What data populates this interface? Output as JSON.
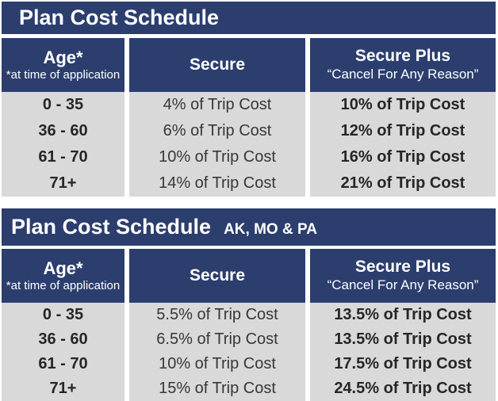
{
  "colors": {
    "navy": "#2b3e6e",
    "row_gray": "#d9d9d9",
    "text_dark": "#2f2f2f",
    "separator_white": "#ffffff"
  },
  "tables": [
    {
      "title": "Plan Cost Schedule",
      "region_suffix": "",
      "header": {
        "age_label": "Age*",
        "age_note": "*at time of application",
        "secure_label": "Secure",
        "secure_plus_label": "Secure Plus",
        "secure_plus_note": "“Cancel For Any Reason”"
      },
      "rows": [
        {
          "age": "0 - 35",
          "secure": "4% of Trip Cost",
          "secure_plus": "10% of Trip Cost"
        },
        {
          "age": "36 - 60",
          "secure": "6% of Trip Cost",
          "secure_plus": "12% of Trip Cost"
        },
        {
          "age": "61 - 70",
          "secure": "10% of Trip Cost",
          "secure_plus": "16% of Trip Cost"
        },
        {
          "age": "71+",
          "secure": "14% of Trip Cost",
          "secure_plus": "21% of Trip Cost"
        }
      ]
    },
    {
      "title": "Plan Cost Schedule",
      "region_suffix": "AK, MO & PA",
      "header": {
        "age_label": "Age*",
        "age_note": "*at time of application",
        "secure_label": "Secure",
        "secure_plus_label": "Secure Plus",
        "secure_plus_note": "“Cancel For Any Reason”"
      },
      "rows": [
        {
          "age": "0 - 35",
          "secure": "5.5% of Trip Cost",
          "secure_plus": "13.5% of Trip Cost"
        },
        {
          "age": "36 - 60",
          "secure": "6.5% of Trip Cost",
          "secure_plus": "13.5% of Trip Cost"
        },
        {
          "age": "61 - 70",
          "secure": "10% of Trip Cost",
          "secure_plus": "17.5% of Trip Cost"
        },
        {
          "age": "71+",
          "secure": "15% of Trip Cost",
          "secure_plus": "24.5% of Trip Cost"
        }
      ]
    }
  ]
}
